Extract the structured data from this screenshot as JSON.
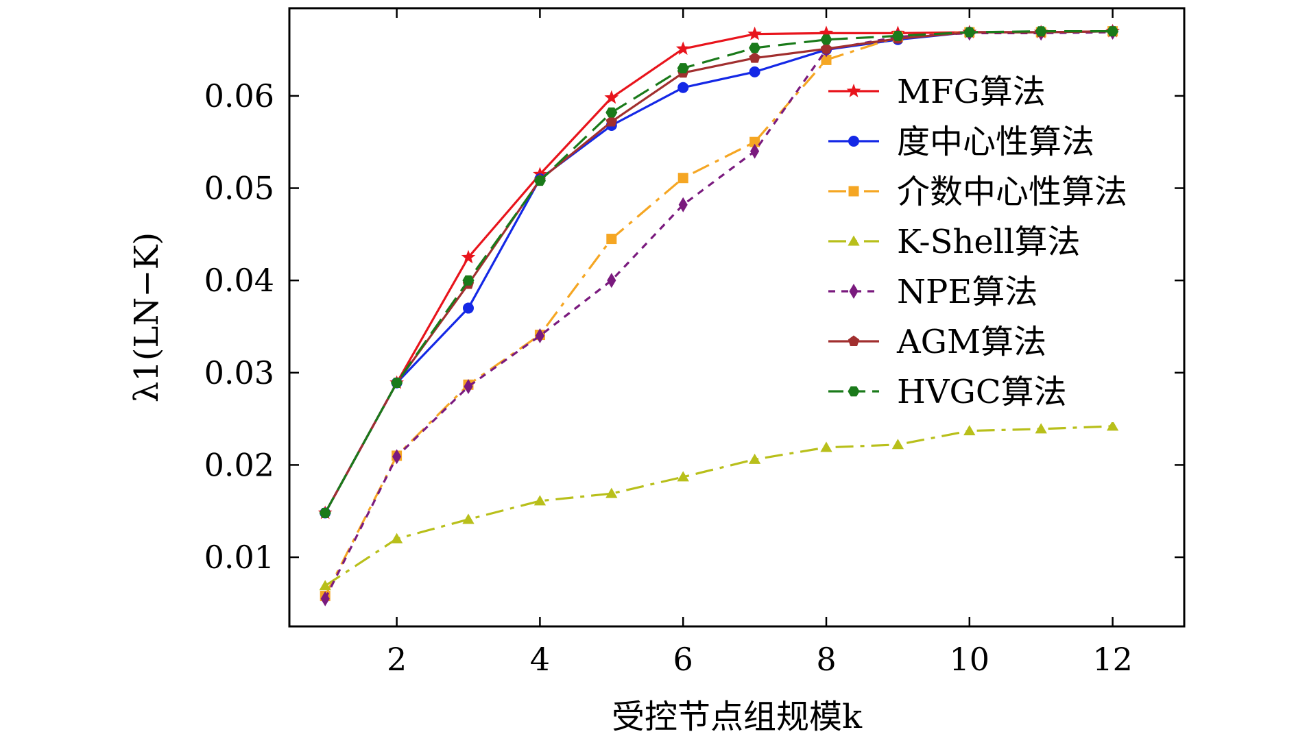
{
  "chart_data": {
    "type": "line",
    "title": "",
    "xlabel": "受控节点组规模k",
    "ylabel": "λ1(LN−K)",
    "xlim": [
      0.5,
      13.0
    ],
    "ylim": [
      0.0025,
      0.0695
    ],
    "x_ticks": [
      2,
      4,
      6,
      8,
      10,
      12
    ],
    "x_tick_labels": [
      "2",
      "4",
      "6",
      "8",
      "10",
      "12"
    ],
    "y_ticks": [
      0.01,
      0.02,
      0.03,
      0.04,
      0.05,
      0.06
    ],
    "y_tick_labels": [
      "0.01",
      "0.02",
      "0.03",
      "0.04",
      "0.05",
      "0.06"
    ],
    "grid": false,
    "legend_position": "right",
    "x": [
      1,
      2,
      3,
      4,
      5,
      6,
      7,
      8,
      9,
      10,
      11,
      12
    ],
    "series": [
      {
        "name": "MFG算法",
        "color": "#e8141c",
        "marker": "star",
        "dash": "solid",
        "values": [
          0.0148,
          0.0289,
          0.0425,
          0.0515,
          0.0598,
          0.0651,
          0.0667,
          0.0668,
          0.0668,
          0.0669,
          0.0669,
          0.067
        ]
      },
      {
        "name": "度中心性算法",
        "color": "#1428e6",
        "marker": "circle",
        "dash": "solid",
        "values": [
          0.0148,
          0.0289,
          0.037,
          0.051,
          0.0568,
          0.0609,
          0.0626,
          0.065,
          0.0661,
          0.0669,
          0.0669,
          0.067
        ]
      },
      {
        "name": "介数中心性算法",
        "color": "#f5a623",
        "marker": "square",
        "dash": "dashdot",
        "values": [
          0.0058,
          0.021,
          0.0287,
          0.0341,
          0.0445,
          0.0511,
          0.055,
          0.0639,
          0.0664,
          0.0669,
          0.0669,
          0.067
        ]
      },
      {
        "name": "K-Shell算法",
        "color": "#b8bf1a",
        "marker": "triangle",
        "dash": "dashdot",
        "values": [
          0.0069,
          0.012,
          0.0141,
          0.0161,
          0.0169,
          0.0187,
          0.0206,
          0.0219,
          0.0222,
          0.0237,
          0.0239,
          0.0242
        ]
      },
      {
        "name": "NPE算法",
        "color": "#7a1a7e",
        "marker": "diamond",
        "dash": "dotted",
        "values": [
          0.0055,
          0.0209,
          0.0285,
          0.034,
          0.04,
          0.0482,
          0.054,
          0.065,
          0.0664,
          0.0668,
          0.0668,
          0.0669
        ]
      },
      {
        "name": "AGM算法",
        "color": "#a12f2f",
        "marker": "pentagon",
        "dash": "solid",
        "values": [
          0.0148,
          0.0289,
          0.0396,
          0.0509,
          0.0572,
          0.0625,
          0.0641,
          0.0651,
          0.0662,
          0.0669,
          0.0669,
          0.067
        ]
      },
      {
        "name": "HVGC算法",
        "color": "#1a7a1a",
        "marker": "hexagon",
        "dash": "dashed",
        "values": [
          0.0148,
          0.0289,
          0.04,
          0.0508,
          0.0582,
          0.063,
          0.0652,
          0.0661,
          0.0665,
          0.0669,
          0.067,
          0.067
        ]
      }
    ]
  }
}
